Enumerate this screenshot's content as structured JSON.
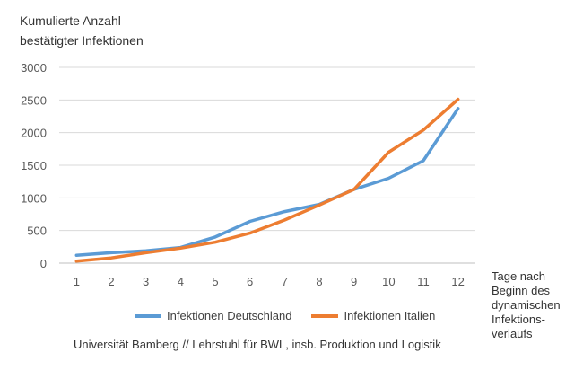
{
  "chart_data": {
    "type": "line",
    "ylabel": "Kumulierte Anzahl\nbestätigter Infektionen",
    "xlabel": "Tage nach\nBeginn des\ndynamischen\nInfektions-\nverlaufs",
    "x": [
      1,
      2,
      3,
      4,
      5,
      6,
      7,
      8,
      9,
      10,
      11,
      12
    ],
    "ylim": [
      0,
      3000
    ],
    "yticks": [
      0,
      500,
      1000,
      1500,
      2000,
      2500,
      3000
    ],
    "grid": true,
    "legend_position": "bottom",
    "series": [
      {
        "name": "Infektionen Deutschland",
        "color": "#5B9BD5",
        "values": [
          120,
          160,
          190,
          240,
          400,
          640,
          790,
          900,
          1130,
          1300,
          1570,
          2370
        ]
      },
      {
        "name": "Infektionen Italien",
        "color": "#ED7D31",
        "values": [
          30,
          80,
          160,
          230,
          320,
          460,
          660,
          890,
          1130,
          1700,
          2040,
          2510
        ]
      }
    ]
  },
  "credit": "Universität Bamberg // Lehrstuhl für BWL, insb. Produktion und Logistik"
}
